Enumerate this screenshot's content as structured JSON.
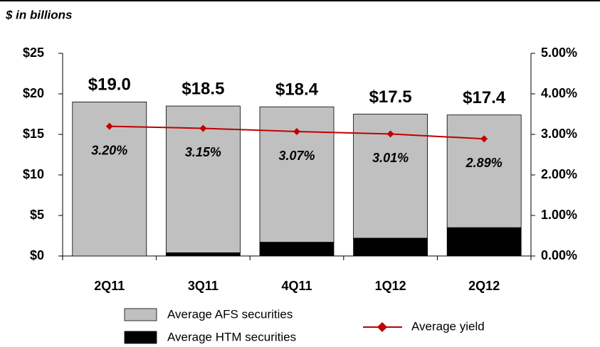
{
  "chart_data": {
    "type": "bar",
    "stacked": true,
    "subtitle": "$ in billions",
    "categories": [
      "2Q11",
      "3Q11",
      "4Q11",
      "1Q12",
      "2Q12"
    ],
    "series": [
      {
        "name": "Average AFS securities",
        "color": "#c0c0c0",
        "values": [
          19.0,
          18.1,
          16.7,
          15.3,
          13.9
        ]
      },
      {
        "name": "Average HTM securities",
        "color": "#000000",
        "values": [
          0,
          0.4,
          1.7,
          2.2,
          3.5
        ]
      },
      {
        "name": "Average yield",
        "type": "line",
        "axis": "y2",
        "color": "#c00000",
        "values": [
          3.2,
          3.15,
          3.07,
          3.01,
          2.89
        ],
        "value_labels": [
          "3.20%",
          "3.15%",
          "3.07%",
          "3.01%",
          "2.89%"
        ]
      }
    ],
    "totals": {
      "values": [
        19.0,
        18.5,
        18.4,
        17.5,
        17.4
      ],
      "value_labels": [
        "$19.0",
        "$18.5",
        "$18.4",
        "$17.5",
        "$17.4"
      ]
    },
    "ylim": [
      0,
      25
    ],
    "yticks": [
      {
        "value": 0,
        "label": "$0"
      },
      {
        "value": 5,
        "label": "$5"
      },
      {
        "value": 10,
        "label": "$10"
      },
      {
        "value": 15,
        "label": "$15"
      },
      {
        "value": 20,
        "label": "$20"
      },
      {
        "value": 25,
        "label": "$25"
      }
    ],
    "y2lim": [
      0,
      5
    ],
    "y2ticks": [
      {
        "value": 0,
        "label": "0.00%"
      },
      {
        "value": 1,
        "label": "1.00%"
      },
      {
        "value": 2,
        "label": "2.00%"
      },
      {
        "value": 3,
        "label": "3.00%"
      },
      {
        "value": 4,
        "label": "4.00%"
      },
      {
        "value": 5,
        "label": "5.00%"
      }
    ],
    "grid": false
  }
}
